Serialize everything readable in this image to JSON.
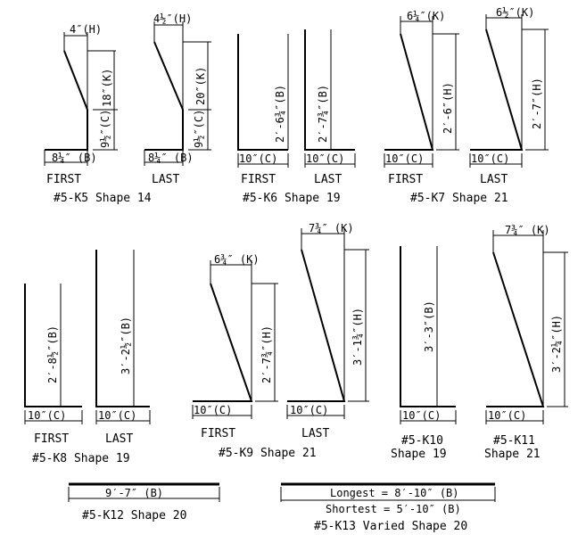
{
  "groups": [
    {
      "id": "k5",
      "caption": "#5-K5 Shape 14",
      "bars": [
        {
          "label": "FIRST",
          "dims": {
            "top": "4″(H)",
            "vertical": "18″(K)",
            "hook": "9½″(C)",
            "base": "8¼″ (B)"
          }
        },
        {
          "label": "LAST",
          "dims": {
            "top": "4½″(H)",
            "vertical": "20″(K)",
            "hook": "9½″(C)",
            "base": "8¼″ (B)"
          }
        }
      ]
    },
    {
      "id": "k6",
      "caption": "#5-K6 Shape 19",
      "bars": [
        {
          "label": "FIRST",
          "dims": {
            "vertical": "2′-6¾″(B)",
            "base": "10″(C)"
          }
        },
        {
          "label": "LAST",
          "dims": {
            "vertical": "2′-7¾″(B)",
            "base": "10″(C)"
          }
        }
      ]
    },
    {
      "id": "k7",
      "caption": "#5-K7 Shape 21",
      "bars": [
        {
          "label": "FIRST",
          "dims": {
            "top": "6¼″(K)",
            "vertical": "2′-6″(H)",
            "base": "10″(C)"
          }
        },
        {
          "label": "LAST",
          "dims": {
            "top": "6½″(K)",
            "vertical": "2′-7″(H)",
            "base": "10″(C)"
          }
        }
      ]
    },
    {
      "id": "k8",
      "caption": "#5-K8 Shape 19",
      "bars": [
        {
          "label": "FIRST",
          "dims": {
            "vertical": "2′-8½″(B)",
            "base": "10″(C)"
          }
        },
        {
          "label": "LAST",
          "dims": {
            "vertical": "3′-2½″(B)",
            "base": "10″(C)"
          }
        }
      ]
    },
    {
      "id": "k9",
      "caption": "#5-K9 Shape 21",
      "bars": [
        {
          "label": "FIRST",
          "dims": {
            "top": "6¾″ (K)",
            "vertical": "2′-7¾″(H)",
            "base": "10″(C)"
          }
        },
        {
          "label": "LAST",
          "dims": {
            "top": "7¾″ (K)",
            "vertical": "3′-1¾″(H)",
            "base": "10″(C)"
          }
        }
      ]
    },
    {
      "id": "k10",
      "caption_line1": "#5-K10",
      "caption_line2": "Shape 19",
      "bars": [
        {
          "dims": {
            "vertical": "3′-3″(B)",
            "base": "10″(C)"
          }
        }
      ]
    },
    {
      "id": "k11",
      "caption_line1": "#5-K11",
      "caption_line2": "Shape 21",
      "bars": [
        {
          "dims": {
            "top": "7¾″ (K)",
            "vertical": "3′-2¼″(H)",
            "base": "10″(C)"
          }
        }
      ]
    },
    {
      "id": "k12",
      "caption": "#5-K12 Shape 20",
      "bars": [
        {
          "dims": {
            "length": "9′-7″ (B)"
          }
        }
      ]
    },
    {
      "id": "k13",
      "caption": "#5-K13 Varied Shape 20",
      "bars": [
        {
          "dims": {
            "longest": "Longest = 8′-10″ (B)",
            "shortest": "Shortest = 5′-10″ (B)"
          }
        }
      ]
    }
  ]
}
